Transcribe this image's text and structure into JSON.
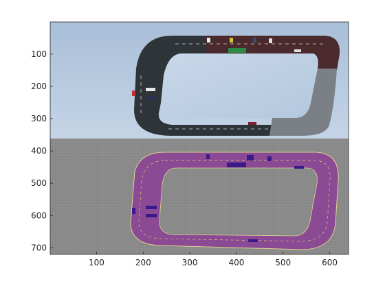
{
  "figure": {
    "panels": [
      "camera-view",
      "segmentation-view"
    ],
    "colors": {
      "sky": "#b7cbe2",
      "asphalt": "#2f3438",
      "concrete": "#7b7f86",
      "brick": "#4a2a2c",
      "ground": "#8a8a8a",
      "seg_road": "#8a4a94",
      "seg_road_dark": "#6e3878",
      "seg_lane": "#e8c86a",
      "seg_vehicle": "#3a1a8a",
      "axis": "#262626"
    }
  },
  "axes": {
    "x_ticks": [
      {
        "value": 100,
        "label": "100"
      },
      {
        "value": 200,
        "label": "200"
      },
      {
        "value": 300,
        "label": "300"
      },
      {
        "value": 400,
        "label": "400"
      },
      {
        "value": 500,
        "label": "500"
      },
      {
        "value": 600,
        "label": "600"
      }
    ],
    "y_ticks": [
      {
        "value": 100,
        "label": "100"
      },
      {
        "value": 200,
        "label": "200"
      },
      {
        "value": 300,
        "label": "300"
      },
      {
        "value": 400,
        "label": "400"
      },
      {
        "value": 500,
        "label": "500"
      },
      {
        "value": 600,
        "label": "600"
      },
      {
        "value": 700,
        "label": "700"
      }
    ],
    "xlim": [
      0.5,
      640.5
    ],
    "ylim": [
      0.5,
      720.5
    ]
  }
}
